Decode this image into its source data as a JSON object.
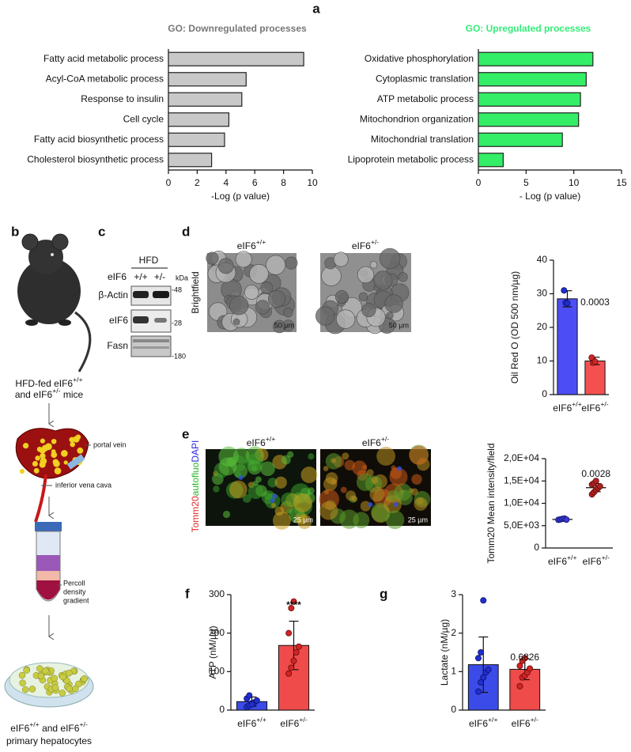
{
  "figure": {
    "panel_labels": [
      "a",
      "b",
      "c",
      "d",
      "e",
      "f",
      "g"
    ],
    "schematic": {
      "mice": [
        "HFD-fed eIF6+/+",
        "and eIF6+/- mice"
      ],
      "portal_vein": "portal vein",
      "vena_cava": "inferior vena cava",
      "gradient": [
        "Percoll",
        "density",
        "gradient"
      ],
      "hepatocytes": [
        "eIF6+/+ and eIF6+/-",
        "primary hepatocytes"
      ]
    },
    "blot": {
      "condition": "HFD",
      "row_label": "eIF6",
      "genotypes": [
        "+/+",
        "+/-"
      ],
      "unit": "kDa",
      "bands": [
        "β-Actin",
        "eIF6",
        "Fasn"
      ],
      "markers": [
        "-48",
        "-28",
        "-180"
      ]
    },
    "brightfield": {
      "side_label": "Brightfield",
      "genotypes": [
        "eIF6+/+",
        "eIF6+/-"
      ],
      "scale_bars": [
        "50 µm",
        "50 µm"
      ]
    },
    "fluorescence": {
      "stain_labels": [
        "Tomm20",
        "autofluo",
        "DAPI"
      ],
      "stain_colors": [
        "#e02828",
        "#28b828",
        "#2a2ae0"
      ],
      "genotypes": [
        "eIF6+/+",
        "eIF6+/-"
      ],
      "scale_bars": [
        "25 µm",
        "25 µm"
      ]
    }
  },
  "chart_data": [
    {
      "type": "bar",
      "orientation": "horizontal",
      "title": "GO: Downregulated processes",
      "title_color": "#777777",
      "categories": [
        "Fatty acid metabolic process",
        "Acyl-CoA metabolic process",
        "Response to insulin",
        "Cell cycle",
        "Fatty acid biosynthetic process",
        "Cholesterol biosynthetic process"
      ],
      "values": [
        9.4,
        5.4,
        5.1,
        4.2,
        3.9,
        3.0
      ],
      "color": "#c8c8c8",
      "xlim": [
        0,
        10
      ],
      "xticks": [
        0,
        2,
        4,
        6,
        8,
        10
      ],
      "xlabel": "-Log (p value)"
    },
    {
      "type": "bar",
      "orientation": "horizontal",
      "title": "GO: Upregulated processes",
      "title_color": "#33ee77",
      "categories": [
        "Oxidative phosphorylation",
        "Cytoplasmic translation",
        "ATP metabolic process",
        "Mitochondrion organization",
        "Mitochondrial translation",
        "Lipoprotein metabolic process"
      ],
      "values": [
        12.0,
        11.3,
        10.7,
        10.5,
        8.8,
        2.6
      ],
      "color": "#33ee66",
      "xlim": [
        0,
        15
      ],
      "xticks": [
        0,
        5,
        10,
        15
      ],
      "xlabel": "- Log (p value)"
    },
    {
      "type": "bar",
      "orientation": "vertical",
      "ylabel": "Oil Red O (OD 500 nm/µg)",
      "categories": [
        "eIF6+/+",
        "eIF6+/-"
      ],
      "values": [
        28.5,
        10
      ],
      "errors": [
        2.4,
        1.1
      ],
      "points": [
        [
          31,
          27.3,
          27.2
        ],
        [
          11,
          9.5,
          9.8
        ]
      ],
      "colors": [
        "#4d4df5",
        "#f55050"
      ],
      "ylim": [
        0,
        40
      ],
      "yticks": [
        0,
        10,
        20,
        30,
        40
      ],
      "annotation": "0.0003"
    },
    {
      "type": "dotplot",
      "ylabel": "Tomm20 Mean intensity/field",
      "categories": [
        "eIF6+/+",
        "eIF6+/-"
      ],
      "values": [
        6400,
        13500
      ],
      "errors": [
        150,
        900
      ],
      "points": [
        [
          6300,
          6400,
          6500,
          6600,
          6350
        ],
        [
          12000,
          12500,
          13000,
          13400,
          13800,
          14200,
          14500,
          15000
        ]
      ],
      "colors": [
        "#3a3acc",
        "#aa2222"
      ],
      "ylim": [
        0,
        20000
      ],
      "yticks": [
        0,
        {
          "value": 5000,
          "label": "5,0E+03"
        },
        {
          "value": 10000,
          "label": "1,0E+04"
        },
        {
          "value": 15000,
          "label": "1,5E+04"
        },
        {
          "value": 20000,
          "label": "2,0E+04"
        }
      ],
      "annotation": "0.0028"
    },
    {
      "type": "bar",
      "orientation": "vertical",
      "ylabel": "ATP (nM/µg)",
      "categories": [
        "eIF6+/+",
        "eIF6+/-"
      ],
      "values": [
        22,
        168
      ],
      "errors": [
        12,
        63
      ],
      "points": [
        [
          8,
          12,
          18,
          20,
          25,
          30,
          38,
          15
        ],
        [
          95,
          110,
          128,
          150,
          165,
          200,
          265,
          282
        ]
      ],
      "colors": [
        "#3b4be8",
        "#ef4b4b"
      ],
      "ylim": [
        0,
        300
      ],
      "yticks": [
        0,
        100,
        200,
        300
      ],
      "annotation": "****"
    },
    {
      "type": "bar",
      "orientation": "vertical",
      "ylabel": "Lactate (nM/µg)",
      "categories": [
        "eIF6+/+",
        "eIF6+/-"
      ],
      "values": [
        1.18,
        1.06
      ],
      "errors": [
        0.72,
        0.27
      ],
      "points": [
        [
          0.48,
          0.72,
          0.85,
          0.98,
          1.05,
          1.35,
          1.5,
          2.85
        ],
        [
          0.62,
          0.85,
          0.9,
          0.98,
          1.08,
          1.15,
          1.28,
          1.35
        ]
      ],
      "colors": [
        "#3b4be8",
        "#ef4b4b"
      ],
      "ylim": [
        0,
        3
      ],
      "yticks": [
        0,
        1,
        2,
        3
      ],
      "annotation": "0.6826"
    }
  ]
}
